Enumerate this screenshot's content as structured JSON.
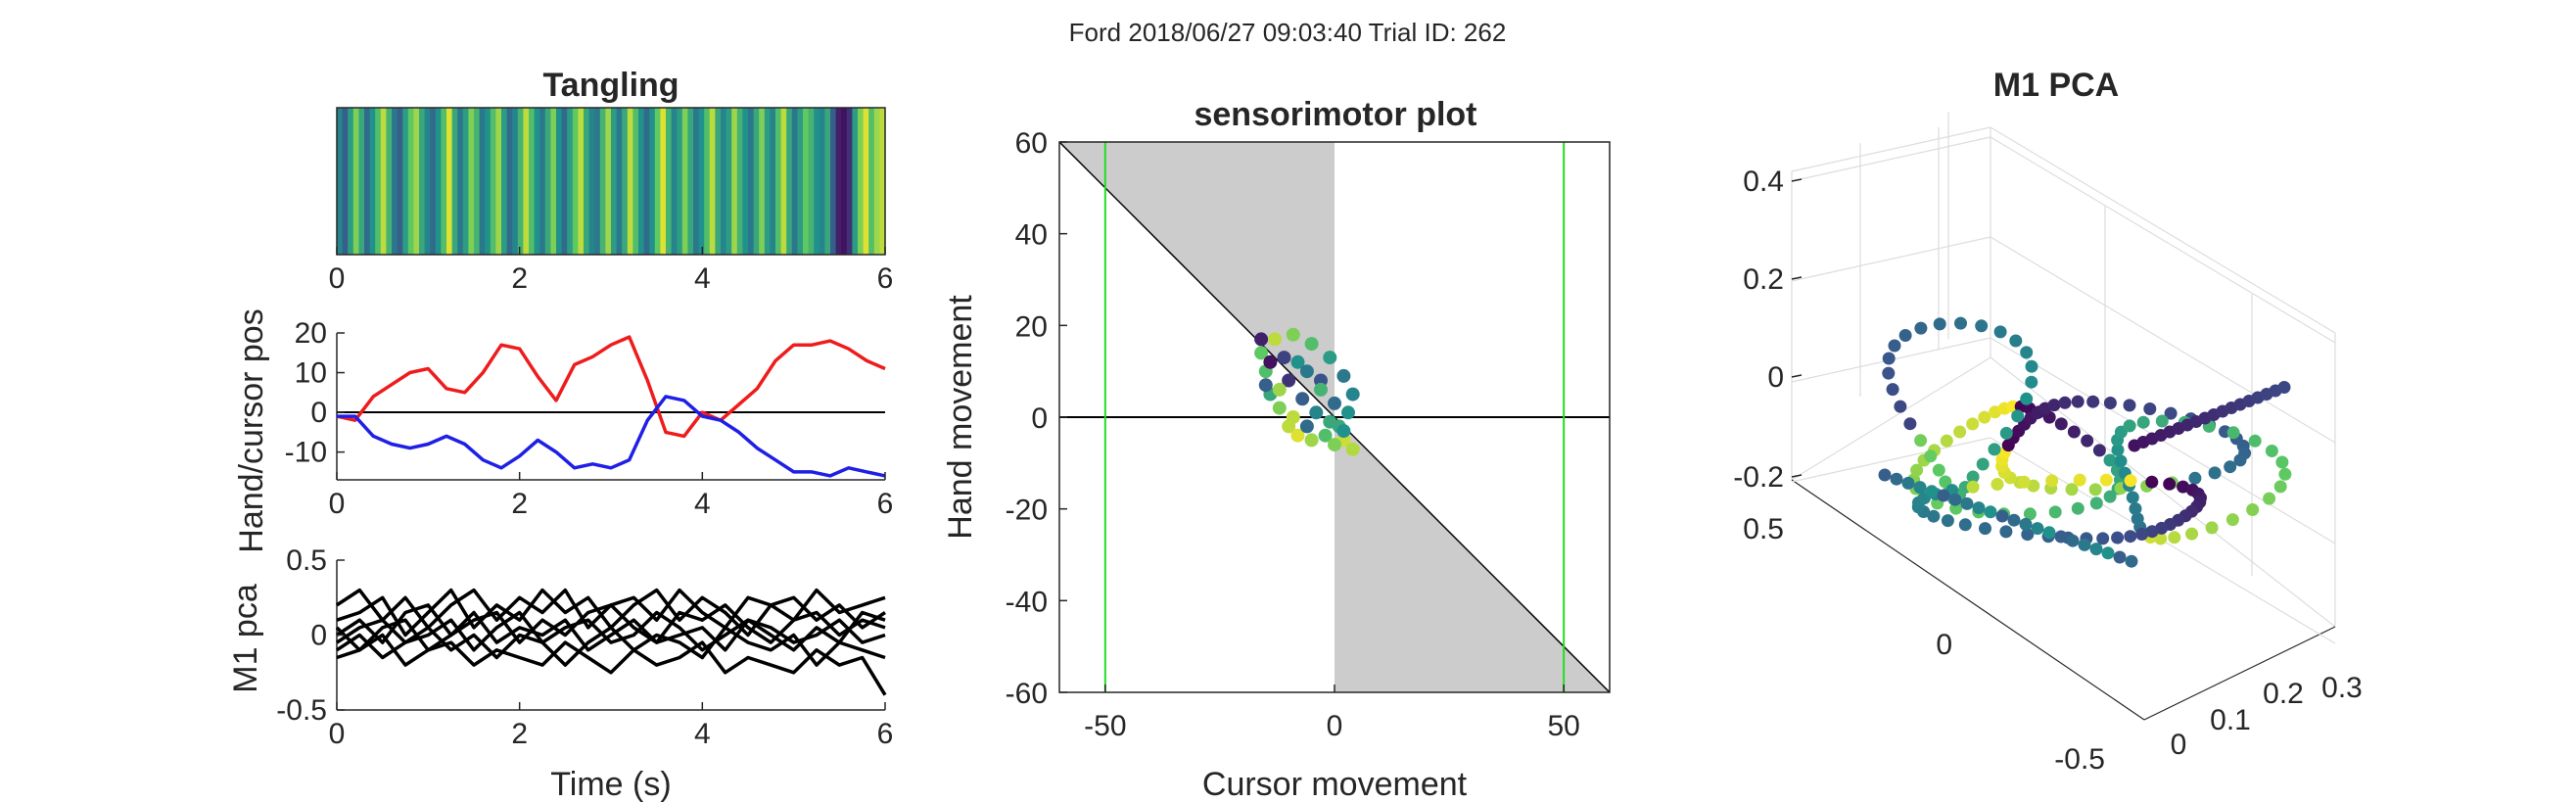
{
  "figure": {
    "suptitle": "Ford 2018/06/27 09:03:40 Trial ID: 262"
  },
  "chart_data": [
    {
      "type": "heatmap",
      "title": "Tangling",
      "xlim": [
        0,
        6
      ],
      "xticks": [
        "0",
        "2",
        "4",
        "6"
      ],
      "colormap": "viridis",
      "values": [
        0.45,
        0.3,
        0.55,
        0.8,
        0.6,
        0.35,
        0.5,
        0.7,
        0.9,
        0.65,
        0.4,
        0.3,
        0.55,
        0.75,
        0.85,
        0.6,
        0.45,
        0.35,
        0.5,
        0.7,
        0.95,
        0.6,
        0.4,
        0.55,
        0.8,
        0.65,
        0.4,
        0.5,
        0.7,
        0.85,
        0.55,
        0.35,
        0.45,
        0.65,
        0.9,
        0.7,
        0.5,
        0.4,
        0.6,
        0.8,
        0.5,
        0.35,
        0.55,
        0.75,
        0.9,
        0.6,
        0.45,
        0.4,
        0.65,
        0.85,
        0.55,
        0.4,
        0.6,
        0.9,
        0.7,
        0.5,
        0.35,
        0.5,
        0.75,
        0.95,
        0.65,
        0.45,
        0.55,
        0.8,
        0.6,
        0.4,
        0.5,
        0.7,
        0.9,
        0.6,
        0.45,
        0.55,
        0.85,
        0.65,
        0.5,
        0.4,
        0.6,
        0.8,
        0.55,
        0.45,
        0.7,
        0.9,
        0.6,
        0.4,
        0.55,
        0.75,
        0.65,
        0.5,
        0.45,
        0.6,
        0.3,
        0.1,
        0.05,
        0.15,
        0.55,
        0.8,
        0.95,
        0.7,
        0.85,
        0.9
      ]
    },
    {
      "type": "line",
      "ylabel": "Hand/cursor pos",
      "xlim": [
        0,
        6
      ],
      "ylim": [
        -17,
        20
      ],
      "xticks": [
        "0",
        "2",
        "4",
        "6"
      ],
      "yticks": [
        "20",
        "10",
        "0",
        "-10"
      ],
      "baseline": 0,
      "x": [
        0,
        0.2,
        0.4,
        0.6,
        0.8,
        1.0,
        1.2,
        1.4,
        1.6,
        1.8,
        2.0,
        2.2,
        2.4,
        2.6,
        2.8,
        3.0,
        3.2,
        3.4,
        3.6,
        3.8,
        4.0,
        4.2,
        4.4,
        4.6,
        4.8,
        5.0,
        5.2,
        5.4,
        5.6,
        5.8,
        6.0
      ],
      "series": [
        {
          "color": "#ee1c1c",
          "values": [
            -1,
            -2,
            4,
            7,
            10,
            11,
            6,
            5,
            10,
            17,
            16,
            9,
            3,
            12,
            14,
            17,
            19,
            8,
            -5,
            -6,
            0,
            -2,
            2,
            6,
            13,
            17,
            17,
            18,
            16,
            13,
            11
          ]
        },
        {
          "color": "#1f1fe5",
          "values": [
            -1,
            -1,
            -6,
            -8,
            -9,
            -8,
            -6,
            -8,
            -12,
            -14,
            -11,
            -7,
            -10,
            -14,
            -13,
            -14,
            -12,
            -2,
            4,
            3,
            -1,
            -2,
            -5,
            -9,
            -12,
            -15,
            -15,
            -16,
            -14,
            -15,
            -16
          ]
        }
      ]
    },
    {
      "type": "line",
      "ylabel": "M1 pca",
      "xlabel": "Time (s)",
      "xlim": [
        0,
        6
      ],
      "ylim": [
        -0.5,
        0.5
      ],
      "xticks": [
        "0",
        "2",
        "4",
        "6"
      ],
      "yticks": [
        "0.5",
        "0",
        "-0.5"
      ],
      "x": [
        0,
        0.25,
        0.5,
        0.75,
        1.0,
        1.25,
        1.5,
        1.75,
        2.0,
        2.25,
        2.5,
        2.75,
        3.0,
        3.25,
        3.5,
        3.75,
        4.0,
        4.25,
        4.5,
        4.75,
        5.0,
        5.25,
        5.5,
        5.75,
        6.0
      ],
      "series": [
        {
          "color": "#000000",
          "values": [
            0.2,
            0.3,
            0.1,
            0.25,
            0.05,
            0.2,
            0.3,
            0.1,
            0.25,
            0.15,
            0.3,
            0.05,
            0.2,
            0.25,
            0.1,
            0.3,
            0.15,
            0.05,
            0.25,
            0.2,
            0.1,
            0.3,
            0.15,
            0.2,
            0.25
          ]
        },
        {
          "color": "#000000",
          "values": [
            0.1,
            0.15,
            0.25,
            0.0,
            0.15,
            0.3,
            0.05,
            0.2,
            0.1,
            0.3,
            0.15,
            0.25,
            0.05,
            0.2,
            0.3,
            0.1,
            0.25,
            0.15,
            0.0,
            0.2,
            0.25,
            0.1,
            0.2,
            0.05,
            0.15
          ]
        },
        {
          "color": "#000000",
          "values": [
            0.0,
            0.1,
            -0.05,
            0.15,
            0.2,
            0.0,
            0.1,
            0.15,
            -0.05,
            0.1,
            0.0,
            0.15,
            0.2,
            0.05,
            -0.05,
            0.15,
            0.1,
            0.2,
            0.05,
            -0.05,
            0.1,
            0.15,
            0.0,
            0.1,
            0.05
          ]
        },
        {
          "color": "#000000",
          "values": [
            -0.05,
            0.05,
            0.1,
            -0.05,
            0.0,
            0.1,
            -0.1,
            0.05,
            0.15,
            -0.05,
            0.05,
            0.1,
            -0.05,
            0.0,
            0.15,
            0.05,
            -0.1,
            0.0,
            0.1,
            0.05,
            -0.05,
            0.0,
            0.1,
            -0.05,
            0.0
          ]
        },
        {
          "color": "#000000",
          "values": [
            -0.1,
            0.0,
            -0.15,
            -0.05,
            0.05,
            -0.1,
            0.0,
            -0.15,
            0.0,
            -0.05,
            -0.2,
            -0.05,
            0.05,
            -0.1,
            0.0,
            -0.05,
            -0.15,
            0.05,
            -0.05,
            -0.1,
            0.0,
            -0.2,
            -0.05,
            -0.1,
            -0.15
          ]
        },
        {
          "color": "#000000",
          "values": [
            -0.15,
            -0.1,
            0.0,
            -0.2,
            -0.1,
            -0.05,
            -0.2,
            -0.1,
            -0.15,
            -0.2,
            -0.05,
            -0.15,
            -0.25,
            -0.1,
            -0.2,
            -0.15,
            -0.05,
            -0.25,
            -0.15,
            -0.2,
            -0.25,
            -0.1,
            -0.2,
            -0.15,
            -0.4
          ]
        },
        {
          "color": "#000000",
          "values": [
            0.05,
            -0.1,
            0.05,
            0.1,
            -0.1,
            0.0,
            0.15,
            -0.05,
            0.05,
            0.0,
            0.1,
            -0.1,
            0.0,
            0.1,
            -0.05,
            0.0,
            0.05,
            -0.1,
            0.1,
            0.0,
            -0.1,
            0.05,
            -0.05,
            0.15,
            0.1
          ]
        }
      ]
    },
    {
      "type": "scatter",
      "title": "sensorimotor plot",
      "xlabel": "Cursor movement",
      "ylabel": "Hand movement",
      "xlim": [
        -60,
        60
      ],
      "ylim": [
        -60,
        60
      ],
      "xticks": [
        "-50",
        "0",
        "50"
      ],
      "yticks": [
        "60",
        "40",
        "20",
        "0",
        "-20",
        "-40",
        "-60"
      ],
      "shaded_region_color": "#cccccc",
      "vertical_lines": [
        -50,
        50
      ],
      "vertical_line_color": "#22dd22",
      "colormap": "viridis",
      "points": [
        {
          "x": -16,
          "y": 17,
          "c": 0.1
        },
        {
          "x": -15,
          "y": 10,
          "c": 0.7
        },
        {
          "x": -14,
          "y": 5,
          "c": 0.6
        },
        {
          "x": -12,
          "y": 2,
          "c": 0.8
        },
        {
          "x": -10,
          "y": -2,
          "c": 0.9
        },
        {
          "x": -8,
          "y": -4,
          "c": 0.95
        },
        {
          "x": -5,
          "y": -5,
          "c": 0.85
        },
        {
          "x": -2,
          "y": -4,
          "c": 0.7
        },
        {
          "x": 1,
          "y": -2,
          "c": 0.6
        },
        {
          "x": 3,
          "y": 1,
          "c": 0.5
        },
        {
          "x": 4,
          "y": 5,
          "c": 0.45
        },
        {
          "x": 2,
          "y": 9,
          "c": 0.4
        },
        {
          "x": -1,
          "y": 13,
          "c": 0.55
        },
        {
          "x": -5,
          "y": 16,
          "c": 0.7
        },
        {
          "x": -9,
          "y": 18,
          "c": 0.8
        },
        {
          "x": -13,
          "y": 17,
          "c": 0.9
        },
        {
          "x": -16,
          "y": 14,
          "c": 0.75
        },
        {
          "x": -14,
          "y": 12,
          "c": 0.05
        },
        {
          "x": -10,
          "y": 8,
          "c": 0.15
        },
        {
          "x": -7,
          "y": 4,
          "c": 0.3
        },
        {
          "x": -4,
          "y": 1,
          "c": 0.45
        },
        {
          "x": -1,
          "y": -1,
          "c": 0.6
        },
        {
          "x": 2,
          "y": -5,
          "c": 0.92
        },
        {
          "x": 4,
          "y": -7,
          "c": 0.88
        },
        {
          "x": 2,
          "y": -3,
          "c": 0.5
        },
        {
          "x": 0,
          "y": 3,
          "c": 0.35
        },
        {
          "x": -3,
          "y": 8,
          "c": 0.25
        },
        {
          "x": -8,
          "y": 12,
          "c": 0.5
        },
        {
          "x": -12,
          "y": 6,
          "c": 0.85
        },
        {
          "x": -9,
          "y": 0,
          "c": 0.9
        },
        {
          "x": -6,
          "y": -2,
          "c": 0.35
        },
        {
          "x": -3,
          "y": 6,
          "c": 0.65
        },
        {
          "x": -6,
          "y": 10,
          "c": 0.4
        },
        {
          "x": -11,
          "y": 13,
          "c": 0.2
        },
        {
          "x": -15,
          "y": 7,
          "c": 0.3
        },
        {
          "x": 0,
          "y": -6,
          "c": 0.8
        }
      ]
    },
    {
      "type": "scatter",
      "title": "M1 PCA",
      "zticks": [
        "0.4",
        "0.2",
        "0",
        "-0.2"
      ],
      "yticks": [
        "0.5",
        "0",
        "-0.5"
      ],
      "xticks": [
        "0",
        "0.1",
        "0.2",
        "0.3"
      ],
      "colormap": "viridis"
    }
  ]
}
